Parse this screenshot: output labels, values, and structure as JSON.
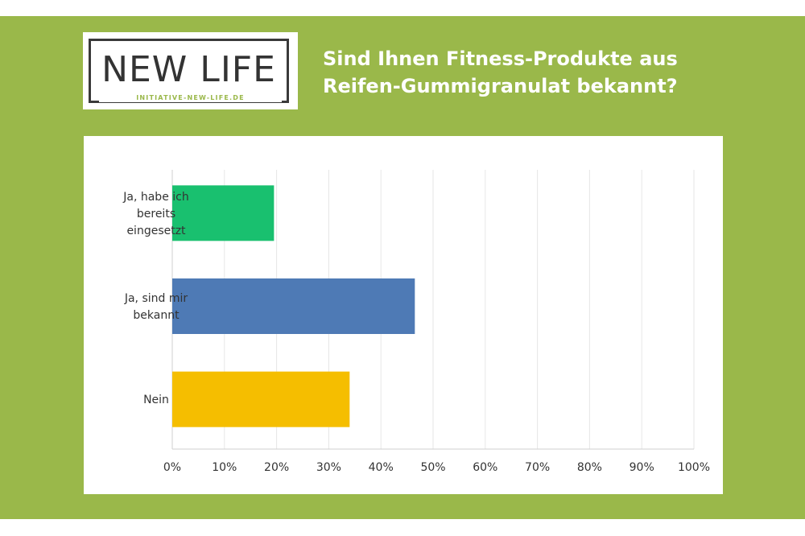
{
  "logo": {
    "text": "NEW LIFE",
    "subtitle": "INITIATIVE-NEW-LIFE.DE"
  },
  "colors": {
    "background": "#9ab84a",
    "bar_green": "#19c06f",
    "bar_blue": "#4e7ab5",
    "bar_yellow": "#f5be00"
  },
  "chart_data": {
    "type": "bar",
    "orientation": "horizontal",
    "title_lines": [
      "Sind Ihnen Fitness-Produkte aus",
      "Reifen-Gummigranulat bekannt?"
    ],
    "categories": [
      [
        "Ja, habe ich",
        "bereits",
        "eingesetzt"
      ],
      [
        "Ja, sind mir",
        "bekannt"
      ],
      [
        "Nein"
      ]
    ],
    "values": [
      19.5,
      46.5,
      34
    ],
    "bar_colors": [
      "#19c06f",
      "#4e7ab5",
      "#f5be00"
    ],
    "xlim": [
      0,
      100
    ],
    "xticks": [
      "0%",
      "10%",
      "20%",
      "30%",
      "40%",
      "50%",
      "60%",
      "70%",
      "80%",
      "90%",
      "100%"
    ],
    "grid": true,
    "legend": "none"
  }
}
